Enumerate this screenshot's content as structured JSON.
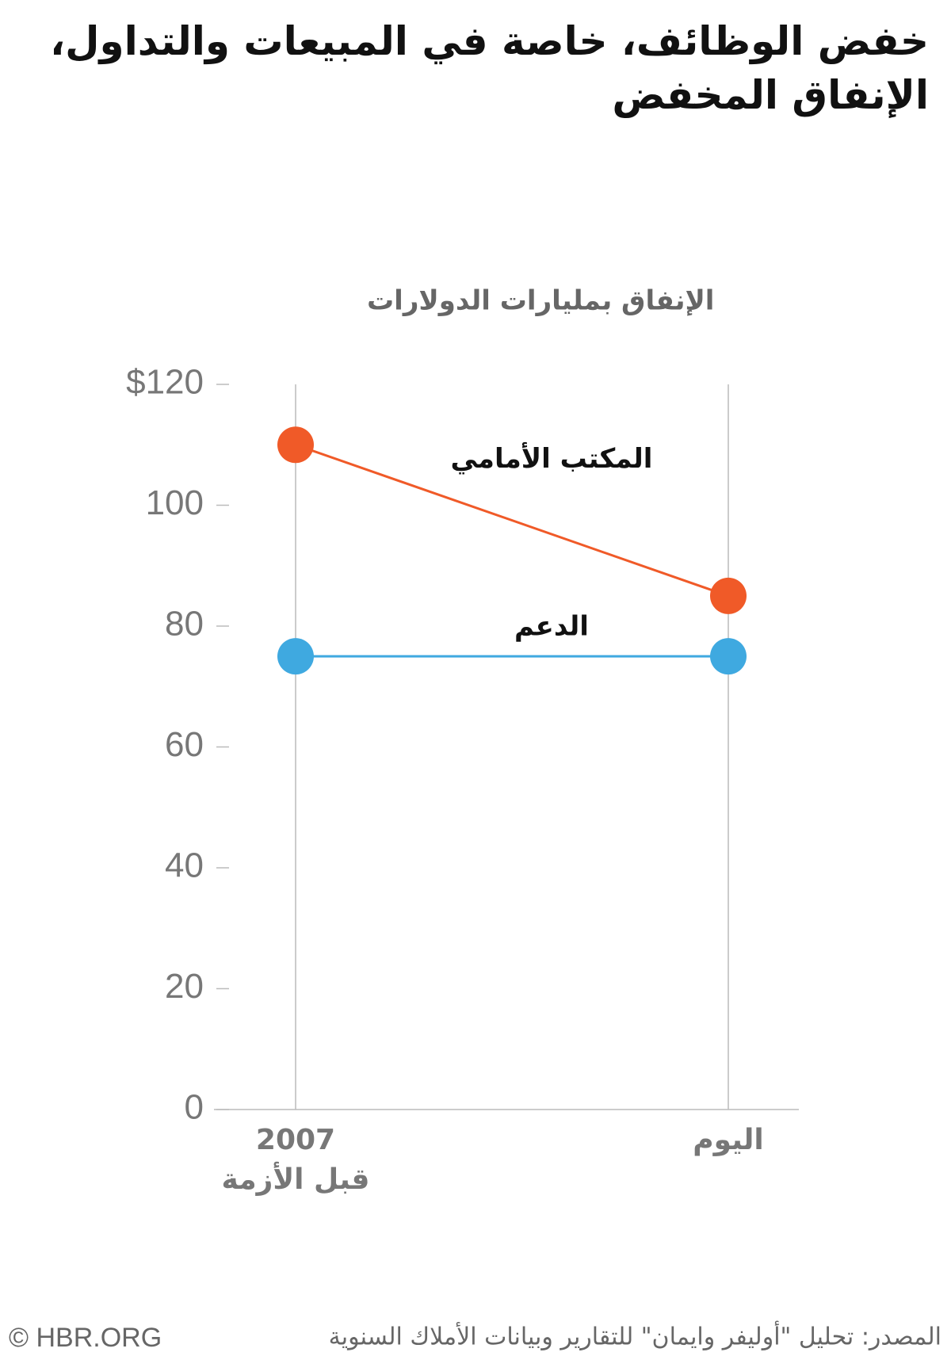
{
  "chart_data": {
    "type": "line",
    "title": "خفض الوظائف، خاصة في المبيعات والتداول، الإنفاق المخفض",
    "y_label": "الإنفاق بمليارات الدولارات",
    "categories": [
      "2007\nقبل الأزمة",
      "اليوم"
    ],
    "series": [
      {
        "name": "المكتب الأمامي",
        "color": "#f05a28",
        "values": [
          110,
          85
        ]
      },
      {
        "name": "الدعم",
        "color": "#3fa9e0",
        "values": [
          75,
          75
        ]
      }
    ],
    "ylim": [
      0,
      120
    ],
    "yticks": [
      0,
      20,
      40,
      60,
      80,
      100,
      {
        "value": 120,
        "label": "$120"
      }
    ],
    "source": "المصدر: تحليل \"أوليفر وايمان\" للتقارير وبيانات الأملاك السنوية",
    "credit": "© HBR.ORG"
  }
}
